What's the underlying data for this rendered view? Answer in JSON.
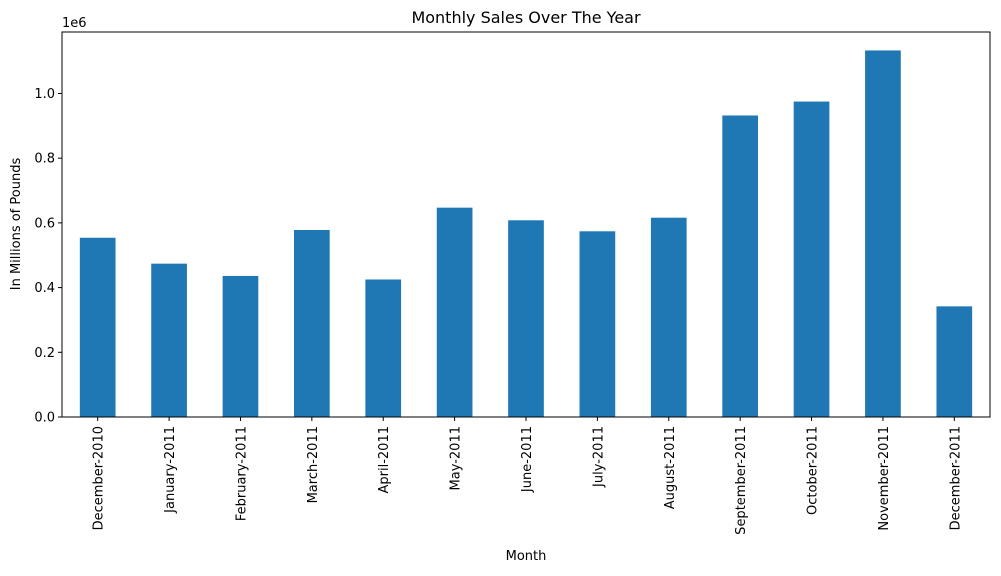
{
  "chart_data": {
    "type": "bar",
    "title": "Monthly Sales Over The Year",
    "xlabel": "Month",
    "ylabel": "In Millions of Pounds",
    "offset_label": "1e6",
    "categories": [
      "December-2010",
      "January-2011",
      "February-2011",
      "March-2011",
      "April-2011",
      "May-2011",
      "June-2011",
      "July-2011",
      "August-2011",
      "September-2011",
      "October-2011",
      "November-2011",
      "December-2011"
    ],
    "values": [
      554000,
      474000,
      436000,
      578000,
      425000,
      647000,
      608000,
      574000,
      616000,
      932000,
      975000,
      1133000,
      342000
    ],
    "ylim": [
      0,
      1190000
    ],
    "yticks": [
      0,
      200000,
      400000,
      600000,
      800000,
      1000000
    ],
    "ytick_labels": [
      "0.0",
      "0.2",
      "0.4",
      "0.6",
      "0.8",
      "1.0"
    ],
    "bar_color": "#1f77b4",
    "grid": false,
    "legend": false
  }
}
